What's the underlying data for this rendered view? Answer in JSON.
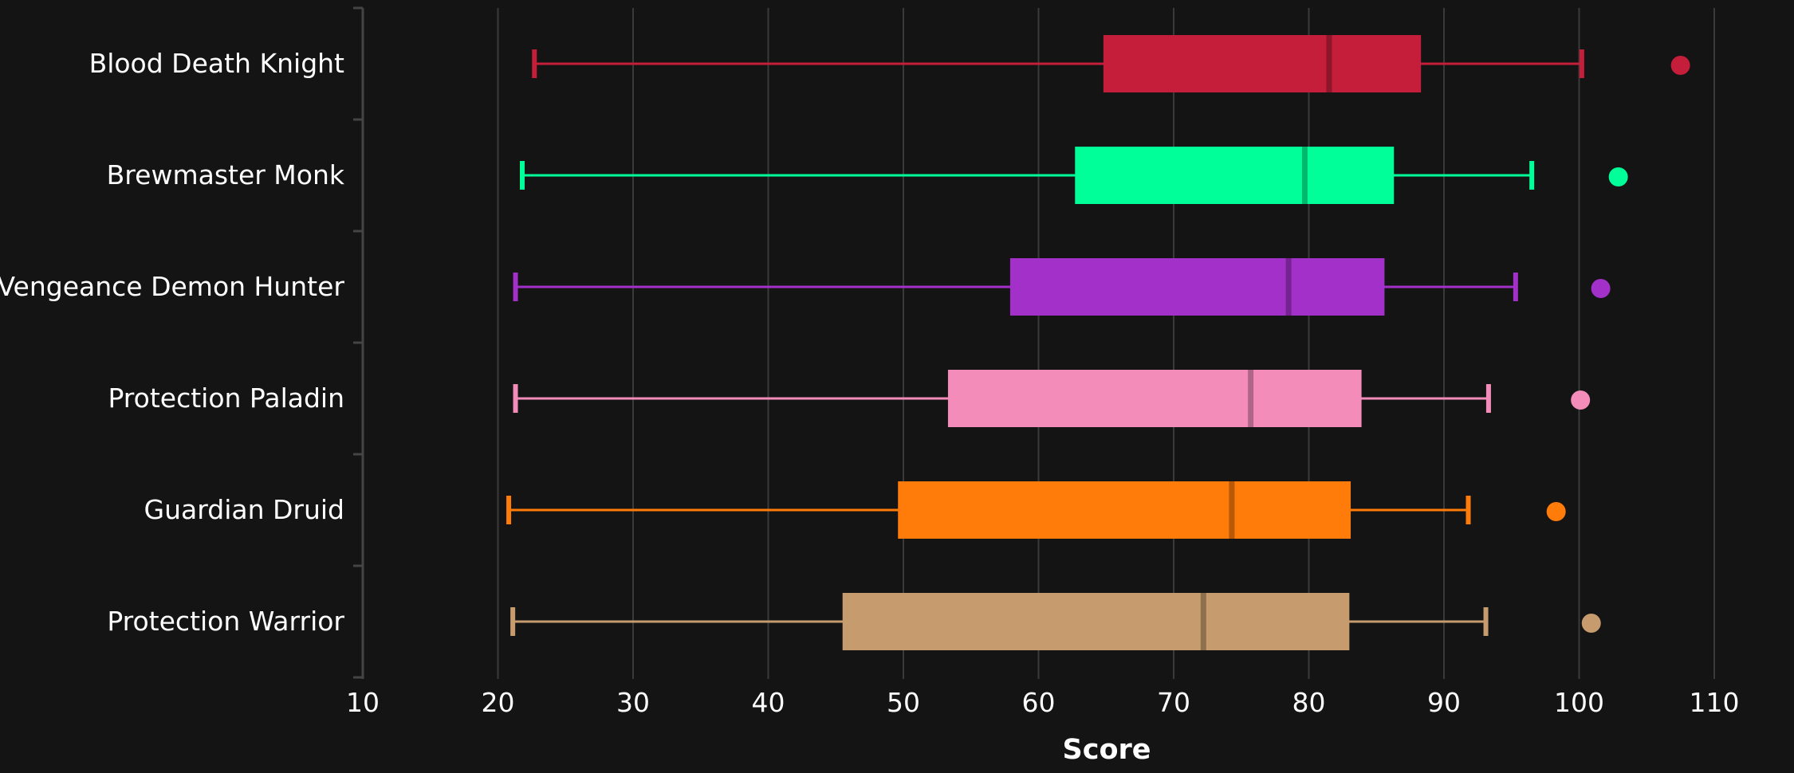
{
  "chart_data": {
    "type": "boxplot",
    "orientation": "horizontal",
    "xlabel": "Score",
    "xlim": [
      10,
      110
    ],
    "xticks": [
      10,
      20,
      30,
      40,
      50,
      60,
      70,
      80,
      90,
      100,
      110
    ],
    "grid": "vertical",
    "background": "#141414",
    "series": [
      {
        "name": "Blood Death Knight",
        "color": "#C41E3A",
        "whisker_low": 22.7,
        "q1": 64.8,
        "median": 81.5,
        "q3": 88.3,
        "whisker_high": 100.2,
        "outliers": [
          107.5
        ]
      },
      {
        "name": "Brewmaster Monk",
        "color": "#00FF98",
        "whisker_low": 21.8,
        "q1": 62.7,
        "median": 79.7,
        "q3": 86.3,
        "whisker_high": 96.5,
        "outliers": [
          102.9
        ]
      },
      {
        "name": "Vengeance Demon Hunter",
        "color": "#A330C9",
        "whisker_low": 21.3,
        "q1": 57.9,
        "median": 78.5,
        "q3": 85.6,
        "whisker_high": 95.3,
        "outliers": [
          101.6
        ]
      },
      {
        "name": "Protection Paladin",
        "color": "#F48CBA",
        "whisker_low": 21.3,
        "q1": 53.3,
        "median": 75.7,
        "q3": 83.9,
        "whisker_high": 93.3,
        "outliers": [
          100.1
        ]
      },
      {
        "name": "Guardian Druid",
        "color": "#FF7C0A",
        "whisker_low": 20.8,
        "q1": 49.6,
        "median": 74.3,
        "q3": 83.1,
        "whisker_high": 91.8,
        "outliers": [
          98.3
        ]
      },
      {
        "name": "Protection Warrior",
        "color": "#C69B6D",
        "whisker_low": 21.1,
        "q1": 45.5,
        "median": 72.2,
        "q3": 83.0,
        "whisker_high": 93.1,
        "outliers": [
          100.9
        ]
      }
    ]
  }
}
